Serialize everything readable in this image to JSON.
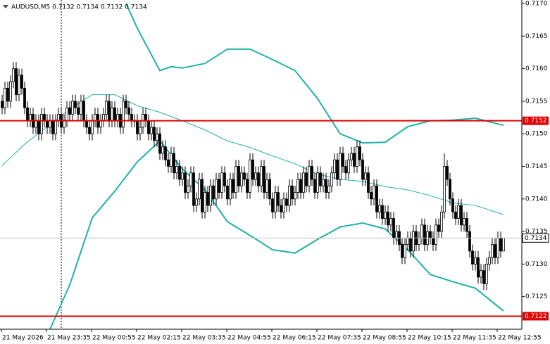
{
  "chart_data": {
    "type": "candlestick",
    "title": "AUDUSD,M5 0.7132 0.7134 0.7132 0.7134",
    "categories": [
      "21 May 2026",
      null,
      null,
      null,
      null,
      null,
      null,
      null,
      null,
      null,
      null,
      null,
      null,
      null,
      null,
      null,
      "21 May 23:35",
      null,
      null,
      null,
      null,
      null,
      null,
      null,
      null,
      null,
      null,
      null,
      null,
      null,
      null,
      null,
      "22 May 00:55",
      null,
      null,
      null,
      null,
      null,
      null,
      null,
      null,
      null,
      null,
      null,
      null,
      null,
      null,
      null,
      "22 May 02:15",
      null,
      null,
      null,
      null,
      null,
      null,
      null,
      null,
      null,
      null,
      null,
      null,
      null,
      null,
      null,
      "22 May 03:35",
      null,
      null,
      null,
      null,
      null,
      null,
      null,
      null,
      null,
      null,
      null,
      null,
      null,
      null,
      null,
      "22 May 04:55",
      null,
      null,
      null,
      null,
      null,
      null,
      null,
      null,
      null,
      null,
      null,
      null,
      null,
      null,
      null,
      "22 May 06:15",
      null,
      null,
      null,
      null,
      null,
      null,
      null,
      null,
      null,
      null,
      null,
      null,
      null,
      null,
      null,
      "22 May 07:35",
      null,
      null,
      null,
      null,
      null,
      null,
      null,
      null,
      null,
      null,
      null,
      null,
      null,
      null,
      null,
      "22 May 08:55",
      null,
      null,
      null,
      null,
      null,
      null,
      null,
      null,
      null,
      null,
      null,
      null,
      null,
      null,
      null,
      "22 May 10:15",
      null,
      null,
      null,
      null,
      null,
      null,
      null,
      null,
      null,
      null,
      null,
      null,
      null,
      null,
      null,
      "22 May 11:35",
      null,
      null,
      null,
      null,
      null,
      null,
      null,
      null,
      null,
      null,
      null,
      null,
      null,
      null,
      null,
      "22 May 12:55",
      null,
      null
    ],
    "open": [
      0.7155,
      0.7154,
      0.7157,
      0.7155,
      0.7158,
      0.716,
      0.7156,
      0.7159,
      0.7157,
      0.7154,
      0.7152,
      0.7153,
      0.7151,
      0.7152,
      0.715,
      0.7153,
      0.7152,
      0.7151,
      0.7152,
      0.715,
      0.7152,
      0.7153,
      0.7151,
      0.7152,
      0.7154,
      0.7153,
      0.7155,
      0.7154,
      0.7153,
      0.7155,
      0.7152,
      0.7151,
      0.715,
      0.7152,
      0.7153,
      0.7151,
      0.7152,
      0.7153,
      0.7155,
      0.7152,
      0.7154,
      0.7152,
      0.7153,
      0.7151,
      0.7155,
      0.7154,
      0.7153,
      0.7152,
      0.7152,
      0.715,
      0.7151,
      0.7153,
      0.7152,
      0.715,
      0.7151,
      0.7149,
      0.715,
      0.7147,
      0.7148,
      0.7146,
      0.7145,
      0.7147,
      0.7144,
      0.7145,
      0.7143,
      0.7144,
      0.7141,
      0.7142,
      0.7144,
      0.7139,
      0.714,
      0.7143,
      0.7138,
      0.7141,
      0.7139,
      0.7142,
      0.714,
      0.7143,
      0.7141,
      0.7144,
      0.7142,
      0.714,
      0.7143,
      0.7141,
      0.7145,
      0.7142,
      0.7144,
      0.7143,
      0.7141,
      0.7146,
      0.7143,
      0.7144,
      0.7142,
      0.7145,
      0.7141,
      0.7143,
      0.714,
      0.7138,
      0.7141,
      0.7139,
      0.7138,
      0.714,
      0.7139,
      0.7142,
      0.714,
      0.7141,
      0.7143,
      0.7141,
      0.7144,
      0.7142,
      0.7145,
      0.7143,
      0.7141,
      0.7144,
      0.7142,
      0.7143,
      0.7141,
      0.7142,
      0.7144,
      0.7146,
      0.7143,
      0.7147,
      0.7145,
      0.7144,
      0.7146,
      0.7147,
      0.7145,
      0.7148,
      0.7146,
      0.7143,
      0.7144,
      0.7141,
      0.714,
      0.7142,
      0.7138,
      0.7139,
      0.7137,
      0.7138,
      0.7136,
      0.7137,
      0.7134,
      0.7135,
      0.7133,
      0.7131,
      0.7133,
      0.7134,
      0.7132,
      0.7135,
      0.7133,
      0.7134,
      0.7136,
      0.7133,
      0.7135,
      0.7134,
      0.7133,
      0.7136,
      0.7135,
      0.7138,
      0.7145,
      0.7143,
      0.714,
      0.7138,
      0.7137,
      0.7139,
      0.7136,
      0.7137,
      0.7135,
      0.7132,
      0.713,
      0.7131,
      0.7128,
      0.7129,
      0.7127,
      0.713,
      0.7131,
      0.7133,
      0.7131,
      0.7134,
      0.7132
    ],
    "high": [
      0.7156,
      0.7158,
      0.7158,
      0.7159,
      0.7161,
      0.7161,
      0.716,
      0.716,
      0.7158,
      0.7155,
      0.7154,
      0.7154,
      0.7153,
      0.7153,
      0.7154,
      0.7154,
      0.7153,
      0.7153,
      0.7153,
      0.7153,
      0.7154,
      0.7154,
      0.7153,
      0.7155,
      0.7155,
      0.7156,
      0.7156,
      0.7155,
      0.7156,
      0.7156,
      0.7153,
      0.7152,
      0.7153,
      0.7154,
      0.7154,
      0.7153,
      0.7154,
      0.7156,
      0.7156,
      0.7155,
      0.7155,
      0.7154,
      0.7154,
      0.7156,
      0.7156,
      0.7155,
      0.7154,
      0.7153,
      0.7153,
      0.7152,
      0.7154,
      0.7154,
      0.7153,
      0.7152,
      0.7152,
      0.7151,
      0.7151,
      0.7149,
      0.7149,
      0.7147,
      0.7148,
      0.7148,
      0.7146,
      0.7146,
      0.7145,
      0.7145,
      0.7143,
      0.7145,
      0.7145,
      0.7141,
      0.7144,
      0.7144,
      0.7142,
      0.7142,
      0.7143,
      0.7143,
      0.7144,
      0.7144,
      0.7145,
      0.7145,
      0.7143,
      0.7144,
      0.7144,
      0.7146,
      0.7146,
      0.7145,
      0.7145,
      0.7144,
      0.7147,
      0.7147,
      0.7145,
      0.7145,
      0.7146,
      0.7146,
      0.7144,
      0.7144,
      0.7141,
      0.7142,
      0.7142,
      0.714,
      0.7141,
      0.7141,
      0.7143,
      0.7143,
      0.7142,
      0.7144,
      0.7144,
      0.7145,
      0.7145,
      0.7146,
      0.7146,
      0.7144,
      0.7145,
      0.7145,
      0.7144,
      0.7144,
      0.7143,
      0.7145,
      0.7147,
      0.7147,
      0.7148,
      0.7148,
      0.7146,
      0.7147,
      0.7148,
      0.7148,
      0.7149,
      0.7149,
      0.7147,
      0.7145,
      0.7145,
      0.7142,
      0.7143,
      0.7143,
      0.714,
      0.714,
      0.7139,
      0.7139,
      0.7138,
      0.7138,
      0.7136,
      0.7136,
      0.7134,
      0.7134,
      0.7135,
      0.7135,
      0.7136,
      0.7136,
      0.7135,
      0.7137,
      0.7137,
      0.7136,
      0.7136,
      0.7135,
      0.7137,
      0.7137,
      0.7139,
      0.7147,
      0.7146,
      0.7144,
      0.7141,
      0.7139,
      0.714,
      0.714,
      0.7138,
      0.7138,
      0.7136,
      0.7133,
      0.7132,
      0.7132,
      0.713,
      0.713,
      0.7131,
      0.7132,
      0.7134,
      0.7134,
      0.7135,
      0.7135,
      0.7134
    ],
    "low": [
      0.7153,
      0.7153,
      0.7154,
      0.7154,
      0.7157,
      0.7155,
      0.7155,
      0.7156,
      0.7153,
      0.7151,
      0.7151,
      0.715,
      0.715,
      0.7149,
      0.7149,
      0.7151,
      0.715,
      0.715,
      0.7149,
      0.7149,
      0.7151,
      0.715,
      0.715,
      0.7151,
      0.7152,
      0.7152,
      0.7153,
      0.7152,
      0.7152,
      0.7151,
      0.715,
      0.7149,
      0.7149,
      0.7151,
      0.715,
      0.715,
      0.7151,
      0.7152,
      0.7151,
      0.7151,
      0.7151,
      0.7151,
      0.715,
      0.715,
      0.7153,
      0.7152,
      0.7151,
      0.7151,
      0.7149,
      0.7149,
      0.715,
      0.7151,
      0.7149,
      0.7149,
      0.7148,
      0.7148,
      0.7146,
      0.7146,
      0.7145,
      0.7144,
      0.7144,
      0.7143,
      0.7143,
      0.7142,
      0.7142,
      0.714,
      0.714,
      0.7141,
      0.7138,
      0.7138,
      0.7139,
      0.7137,
      0.7137,
      0.7138,
      0.7138,
      0.7139,
      0.7139,
      0.714,
      0.714,
      0.7141,
      0.7139,
      0.7139,
      0.714,
      0.714,
      0.7141,
      0.7141,
      0.7142,
      0.714,
      0.714,
      0.7142,
      0.7142,
      0.7141,
      0.7141,
      0.714,
      0.714,
      0.7139,
      0.7137,
      0.7137,
      0.7138,
      0.7137,
      0.7137,
      0.7138,
      0.7138,
      0.7139,
      0.7139,
      0.714,
      0.714,
      0.714,
      0.7141,
      0.7141,
      0.7142,
      0.714,
      0.714,
      0.7141,
      0.7141,
      0.714,
      0.714,
      0.7141,
      0.7143,
      0.7142,
      0.7142,
      0.7144,
      0.7143,
      0.7143,
      0.7145,
      0.7144,
      0.7144,
      0.7145,
      0.7142,
      0.7142,
      0.714,
      0.7139,
      0.7139,
      0.7137,
      0.7137,
      0.7136,
      0.7136,
      0.7135,
      0.7135,
      0.7133,
      0.7133,
      0.7132,
      0.713,
      0.713,
      0.7132,
      0.7131,
      0.7131,
      0.7132,
      0.7132,
      0.7133,
      0.7132,
      0.7132,
      0.7133,
      0.7132,
      0.7132,
      0.7134,
      0.7134,
      0.7137,
      0.7142,
      0.7139,
      0.7137,
      0.7136,
      0.7136,
      0.7135,
      0.7135,
      0.7134,
      0.7131,
      0.7129,
      0.7129,
      0.7127,
      0.7127,
      0.7126,
      0.7126,
      0.7129,
      0.713,
      0.713,
      0.713,
      0.7131,
      0.7132
    ],
    "close": [
      0.7154,
      0.7157,
      0.7155,
      0.7158,
      0.716,
      0.7156,
      0.7159,
      0.7157,
      0.7154,
      0.7152,
      0.7153,
      0.7151,
      0.7152,
      0.715,
      0.7153,
      0.7152,
      0.7151,
      0.7152,
      0.715,
      0.7152,
      0.7153,
      0.7151,
      0.7152,
      0.7154,
      0.7153,
      0.7155,
      0.7154,
      0.7153,
      0.7155,
      0.7152,
      0.7151,
      0.715,
      0.7152,
      0.7153,
      0.7151,
      0.7152,
      0.7153,
      0.7155,
      0.7152,
      0.7154,
      0.7152,
      0.7153,
      0.7151,
      0.7155,
      0.7154,
      0.7153,
      0.7152,
      0.7152,
      0.715,
      0.7151,
      0.7153,
      0.7152,
      0.715,
      0.7151,
      0.7149,
      0.715,
      0.7147,
      0.7148,
      0.7146,
      0.7145,
      0.7147,
      0.7144,
      0.7145,
      0.7143,
      0.7144,
      0.7141,
      0.7142,
      0.7144,
      0.7139,
      0.714,
      0.7143,
      0.7138,
      0.7141,
      0.7139,
      0.7142,
      0.714,
      0.7143,
      0.7141,
      0.7144,
      0.7142,
      0.714,
      0.7143,
      0.7141,
      0.7145,
      0.7142,
      0.7144,
      0.7143,
      0.7141,
      0.7146,
      0.7143,
      0.7144,
      0.7142,
      0.7145,
      0.7141,
      0.7143,
      0.714,
      0.7138,
      0.7141,
      0.7139,
      0.7138,
      0.714,
      0.7139,
      0.7142,
      0.714,
      0.7141,
      0.7143,
      0.7141,
      0.7144,
      0.7142,
      0.7145,
      0.7143,
      0.7141,
      0.7144,
      0.7142,
      0.7143,
      0.7141,
      0.7142,
      0.7144,
      0.7146,
      0.7143,
      0.7147,
      0.7145,
      0.7144,
      0.7146,
      0.7147,
      0.7145,
      0.7148,
      0.7146,
      0.7143,
      0.7144,
      0.7141,
      0.714,
      0.7142,
      0.7138,
      0.7139,
      0.7137,
      0.7138,
      0.7136,
      0.7137,
      0.7134,
      0.7135,
      0.7133,
      0.7131,
      0.7133,
      0.7134,
      0.7132,
      0.7135,
      0.7133,
      0.7134,
      0.7136,
      0.7133,
      0.7135,
      0.7134,
      0.7133,
      0.7136,
      0.7135,
      0.7138,
      0.7145,
      0.7143,
      0.714,
      0.7138,
      0.7137,
      0.7139,
      0.7136,
      0.7137,
      0.7135,
      0.7132,
      0.713,
      0.7131,
      0.7128,
      0.7129,
      0.7127,
      0.713,
      0.7131,
      0.7133,
      0.7131,
      0.7134,
      0.7132,
      0.7134
    ],
    "indicators": [
      {
        "color": "#20b2aa",
        "x": [
          44,
          48,
          56,
          60,
          64,
          72,
          80,
          88,
          96,
          104,
          112,
          120,
          128,
          136,
          144,
          152,
          160,
          168,
          178
        ],
        "values": [
          0.717,
          0.71662,
          0.71597,
          0.71603,
          0.71601,
          0.71608,
          0.7163,
          0.7163,
          0.71614,
          0.71597,
          0.71554,
          0.715,
          0.71486,
          0.71487,
          0.71511,
          0.7152,
          0.71521,
          0.71524,
          0.71513
        ]
      },
      {
        "color": "#20b2aa",
        "x": [
          0,
          8,
          16,
          24,
          32,
          40,
          48,
          56,
          64,
          72,
          80,
          88,
          96,
          104,
          112,
          120,
          128,
          136,
          144,
          152,
          160,
          168,
          178
        ],
        "values": [
          0.71451,
          0.71484,
          0.71511,
          0.71538,
          0.7156,
          0.7156,
          0.71543,
          0.71533,
          0.7152,
          0.71506,
          0.71489,
          0.71479,
          0.71466,
          0.71454,
          0.71438,
          0.7143,
          0.71427,
          0.71419,
          0.71414,
          0.71405,
          0.71394,
          0.7139,
          0.71376
        ]
      },
      {
        "color": "#20b2aa",
        "x": [
          17,
          24,
          32,
          40,
          48,
          56,
          64,
          72,
          80,
          88,
          96,
          104,
          112,
          120,
          128,
          136,
          144,
          152,
          160,
          168,
          178
        ],
        "values": [
          0.712,
          0.71268,
          0.71371,
          0.71412,
          0.71457,
          0.71489,
          0.71446,
          0.71414,
          0.71365,
          0.71344,
          0.71322,
          0.71317,
          0.71338,
          0.71357,
          0.71363,
          0.71354,
          0.71322,
          0.71284,
          0.71273,
          0.71263,
          0.71228
        ]
      }
    ],
    "hlines": [
      {
        "value": 0.7152,
        "color": "#e00000"
      },
      {
        "value": 0.7122,
        "color": "#e00000"
      }
    ],
    "bid": 0.7134,
    "ylim": [
      0.712,
      0.717
    ],
    "yticks": [
      0.7125,
      {
        "value": 0.713,
        "label": "0.7130"
      },
      0.7135,
      {
        "value": 0.714,
        "label": "0.7140"
      },
      0.7145,
      {
        "value": 0.715,
        "label": "0.7150"
      },
      0.7155,
      {
        "value": 0.716,
        "label": "0.7160"
      },
      0.7165,
      {
        "value": 0.717,
        "label": "0.7170"
      }
    ]
  }
}
